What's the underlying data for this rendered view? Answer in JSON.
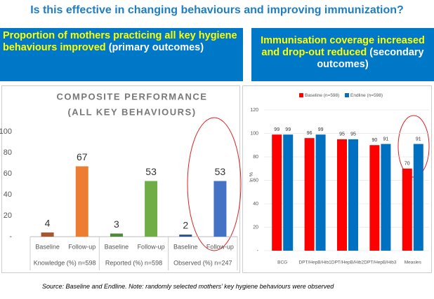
{
  "slide": {
    "title": "Is this effective in changing behaviours and improving immunization?",
    "left_header": {
      "highlight": "Proportion of mothers practicing all key hygiene behaviours improved",
      "rest": "(primary outcomes)"
    },
    "right_header": {
      "highlight": "Immunisation coverage increased and drop-out reduced",
      "rest": "(secondary outcomes)"
    },
    "source": "Source: Baseline and Endline. Note: randomly selected mothers’ key hygiene behaviours were observed"
  },
  "chart_data": [
    {
      "type": "bar",
      "title": [
        "COMPOSITE PERFORMANCE",
        "(ALL KEY BEHAVIOURS)"
      ],
      "categories": [
        "Baseline",
        "Follow-up",
        "Baseline",
        "Follow-up",
        "Baseline",
        "Follow-up"
      ],
      "groups": [
        "Knowledge (%) n=598",
        "Reported (%) n=598",
        "Observed (%) n=247"
      ],
      "values": [
        4,
        67,
        3,
        53,
        2,
        53
      ],
      "colors": [
        "#a35a33",
        "#ed7d31",
        "#4e8a3a",
        "#70ad47",
        "#2f5597",
        "#4472c4"
      ],
      "ylim": [
        0,
        100
      ],
      "yticks": [
        {
          "value": 0,
          "label": "-"
        },
        20,
        40,
        60,
        80,
        100
      ],
      "grid": false
    },
    {
      "type": "bar",
      "categories": [
        "BCG",
        "DPT/HepB/Hib1",
        "DPT/HepB/Hib2",
        "DPT/HepB/Hib3",
        "Measles"
      ],
      "series": [
        {
          "name": "Baseline (n=598)",
          "color": "#ff0000",
          "values": [
            99,
            96,
            95,
            90,
            70
          ]
        },
        {
          "name": "Endline (n=598)",
          "color": "#0070c0",
          "values": [
            99,
            99,
            95,
            91,
            91
          ]
        }
      ],
      "y_label": "In %",
      "ylim": [
        0,
        120
      ],
      "yticks": [
        {
          "value": 0,
          "label": "-"
        },
        20,
        40,
        60,
        80,
        100,
        120
      ],
      "grid": true
    }
  ]
}
